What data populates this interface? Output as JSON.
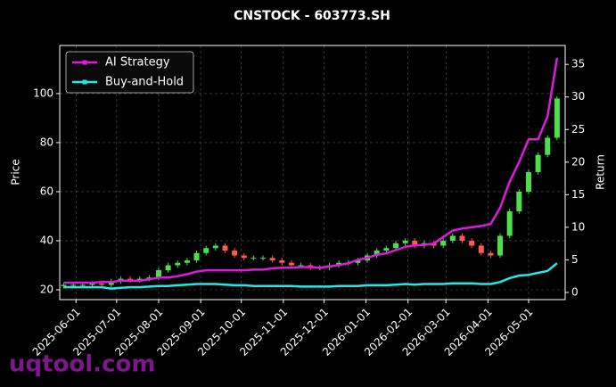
{
  "chart_data": {
    "type": "candlestick",
    "title": "CNSTOCK - 603773.SH",
    "ylabel": "Price",
    "y2label": "Return",
    "watermark": "uqtool.com",
    "x": [
      "2025-05-23",
      "2025-05-30",
      "2025-06-06",
      "2025-06-13",
      "2025-06-20",
      "2025-06-27",
      "2025-07-04",
      "2025-07-11",
      "2025-07-18",
      "2025-07-25",
      "2025-08-01",
      "2025-08-08",
      "2025-08-15",
      "2025-08-22",
      "2025-08-29",
      "2025-09-05",
      "2025-09-12",
      "2025-09-19",
      "2025-09-26",
      "2025-10-03",
      "2025-10-10",
      "2025-10-17",
      "2025-10-24",
      "2025-10-31",
      "2025-11-07",
      "2025-11-14",
      "2025-11-21",
      "2025-11-28",
      "2025-12-05",
      "2025-12-12",
      "2025-12-19",
      "2025-12-26",
      "2026-01-02",
      "2026-01-09",
      "2026-01-16",
      "2026-01-23",
      "2026-01-30",
      "2026-02-06",
      "2026-02-13",
      "2026-02-20",
      "2026-02-27",
      "2026-03-06",
      "2026-03-13",
      "2026-03-20",
      "2026-03-27",
      "2026-04-03",
      "2026-04-10",
      "2026-04-17",
      "2026-04-24",
      "2026-05-01",
      "2026-05-08",
      "2026-05-15",
      "2026-05-22"
    ],
    "open": [
      21.5,
      22,
      22,
      22,
      22.5,
      22,
      23.5,
      24.5,
      24,
      24.5,
      25,
      28,
      30,
      31,
      32,
      35,
      37,
      38,
      36,
      34,
      33,
      33,
      33,
      32,
      31,
      30,
      30,
      29,
      29,
      30,
      31,
      31,
      32,
      34,
      36,
      37,
      39,
      40,
      38,
      39,
      38,
      40,
      42,
      40,
      38,
      35,
      34,
      42,
      52,
      60,
      68,
      75,
      82
    ],
    "high": [
      23,
      23,
      23,
      23.5,
      23.5,
      24.5,
      25.5,
      25.5,
      25.5,
      26,
      29,
      31,
      32,
      33,
      36,
      38,
      39,
      39,
      37,
      35,
      34,
      34,
      34,
      33,
      32,
      31,
      31,
      30,
      31,
      32,
      32,
      33,
      35,
      37,
      38,
      40,
      41,
      41,
      40,
      40,
      41,
      43,
      43,
      41,
      39,
      36,
      43,
      53,
      61,
      69,
      76,
      83,
      99
    ],
    "low": [
      20.5,
      21,
      21,
      21,
      21,
      21,
      22.5,
      23,
      23,
      23.5,
      24,
      27,
      29,
      30,
      31,
      34,
      36,
      35,
      33,
      32,
      32,
      32,
      31,
      30,
      29,
      29,
      28,
      28,
      28,
      29,
      30,
      30,
      31,
      33,
      35,
      36,
      38,
      37,
      37,
      37,
      37,
      39,
      39,
      37,
      34,
      33,
      33,
      41,
      51,
      59,
      67,
      74,
      81
    ],
    "close": [
      22,
      22,
      22,
      22.5,
      22,
      23.5,
      24.5,
      24,
      24.5,
      25,
      28,
      30,
      31,
      32,
      35,
      37,
      38,
      36,
      34,
      33,
      33,
      33,
      32,
      31,
      30,
      30,
      29,
      29,
      30,
      31,
      31,
      32,
      34,
      36,
      37,
      39,
      40,
      38,
      39,
      38,
      40,
      42,
      40,
      38,
      35,
      34,
      42,
      52,
      60,
      68,
      75,
      82,
      98
    ],
    "up_color": "#4be04b",
    "down_color": "#ff5a4a",
    "series": [
      {
        "name": "AI Strategy",
        "color": "#e019e0",
        "axis": "y2",
        "values": [
          1.5,
          1.5,
          1.5,
          1.5,
          1.6,
          1.6,
          1.8,
          1.8,
          1.8,
          2.0,
          2.3,
          2.3,
          2.5,
          2.8,
          3.2,
          3.4,
          3.4,
          3.4,
          3.4,
          3.4,
          3.5,
          3.5,
          3.7,
          3.8,
          3.8,
          3.9,
          3.9,
          3.8,
          4.0,
          4.2,
          4.5,
          5.0,
          5.3,
          5.8,
          6.0,
          6.5,
          7.0,
          7.2,
          7.3,
          7.5,
          8.5,
          9.5,
          9.8,
          10.0,
          10.2,
          10.5,
          13,
          17,
          20,
          23.5,
          23.5,
          27,
          36
        ]
      },
      {
        "name": "Buy-and-Hold",
        "color": "#22e8e8",
        "axis": "y2",
        "values": [
          0.8,
          0.8,
          0.8,
          0.8,
          0.8,
          0.6,
          0.7,
          0.8,
          0.8,
          0.9,
          1.0,
          1.0,
          1.1,
          1.2,
          1.3,
          1.3,
          1.3,
          1.2,
          1.1,
          1.1,
          1.0,
          1.0,
          1.0,
          1.0,
          1.0,
          0.9,
          0.9,
          0.9,
          0.9,
          1.0,
          1.0,
          1.0,
          1.1,
          1.1,
          1.1,
          1.2,
          1.3,
          1.2,
          1.3,
          1.3,
          1.3,
          1.4,
          1.4,
          1.4,
          1.3,
          1.3,
          1.6,
          2.2,
          2.6,
          2.7,
          3.0,
          3.3,
          4.5
        ]
      }
    ],
    "xlim": [
      "2025-05-20",
      "2026-05-28"
    ],
    "xticks": [
      "2025-06-01",
      "2025-07-01",
      "2025-08-01",
      "2025-09-01",
      "2025-10-01",
      "2025-11-01",
      "2025-12-01",
      "2026-01-01",
      "2026-02-01",
      "2026-03-01",
      "2026-04-01",
      "2026-05-01"
    ],
    "ylim": [
      16,
      119.6
    ],
    "yticks": [
      20,
      40,
      60,
      80,
      100
    ],
    "y2lim": [
      -1.1,
      37.9
    ],
    "y2ticks": [
      0,
      5,
      10,
      15,
      20,
      25,
      30,
      35
    ],
    "grid": true,
    "legend": "upper left"
  }
}
